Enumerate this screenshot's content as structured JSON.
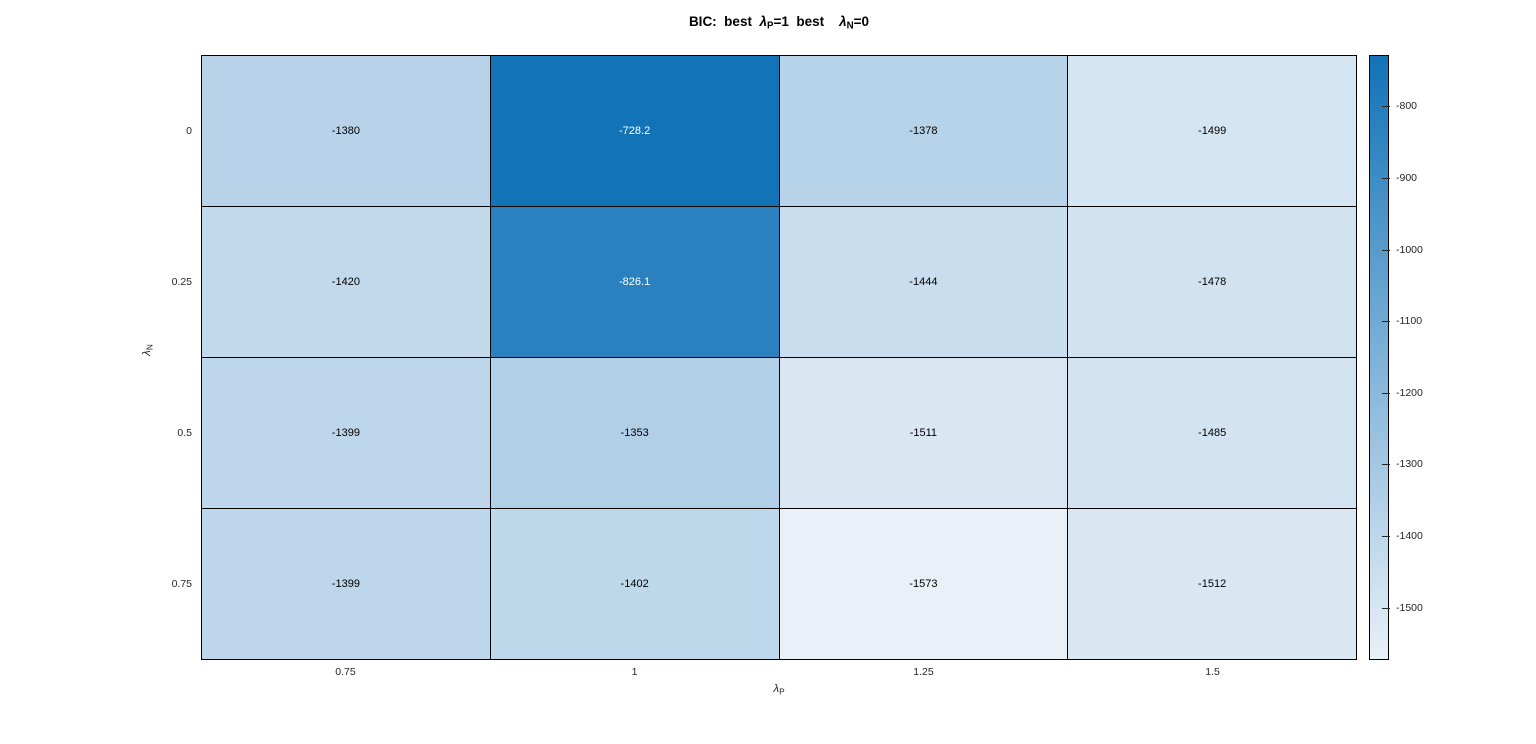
{
  "title": {
    "prefix": "BIC:  best  ",
    "lambda": "λ",
    "sub_p": "P",
    "mid": "=1  best    ",
    "sub_n": "N",
    "suffix": "=0"
  },
  "axes": {
    "x_lambda": "λ",
    "x_sub": "P",
    "y_lambda": "λ",
    "y_sub": "N"
  },
  "chart_data": {
    "type": "heatmap",
    "title": "BIC: best λP=1 best λN=0",
    "xlabel": "λP",
    "ylabel": "λN",
    "x_categories": [
      "0.75",
      "1",
      "1.25",
      "1.5"
    ],
    "y_categories": [
      "0",
      "0.25",
      "0.5",
      "0.75"
    ],
    "values": [
      [
        -1380,
        -728.2,
        -1378,
        -1499
      ],
      [
        -1420,
        -826.1,
        -1444,
        -1478
      ],
      [
        -1399,
        -1353,
        -1511,
        -1485
      ],
      [
        -1399,
        -1402,
        -1573,
        -1512
      ]
    ],
    "cell_labels": [
      [
        "-1380",
        "-728.2",
        "-1378",
        "-1499"
      ],
      [
        "-1420",
        "-826.1",
        "-1444",
        "-1478"
      ],
      [
        "-1399",
        "-1353",
        "-1511",
        "-1485"
      ],
      [
        "-1399",
        "-1402",
        "-1573",
        "-1512"
      ]
    ],
    "vmin": -1573,
    "vmax": -728.2,
    "colorbar_ticks": [
      {
        "value": -800,
        "label": "-800"
      },
      {
        "value": -900,
        "label": "-900"
      },
      {
        "value": -1000,
        "label": "-1000"
      },
      {
        "value": -1100,
        "label": "-1100"
      },
      {
        "value": -1200,
        "label": "-1200"
      },
      {
        "value": -1300,
        "label": "-1300"
      },
      {
        "value": -1400,
        "label": "-1400"
      },
      {
        "value": -1500,
        "label": "-1500"
      }
    ],
    "colors": {
      "colormap_max": "#1273b7",
      "colormap_min": "#e9f0f8",
      "grid_line": "#000000",
      "cell_text_dark": "#000000",
      "cell_text_light": "#ffffff",
      "tick_text": "#262626"
    },
    "legend_position": "right-colorbar",
    "grid": "on"
  }
}
